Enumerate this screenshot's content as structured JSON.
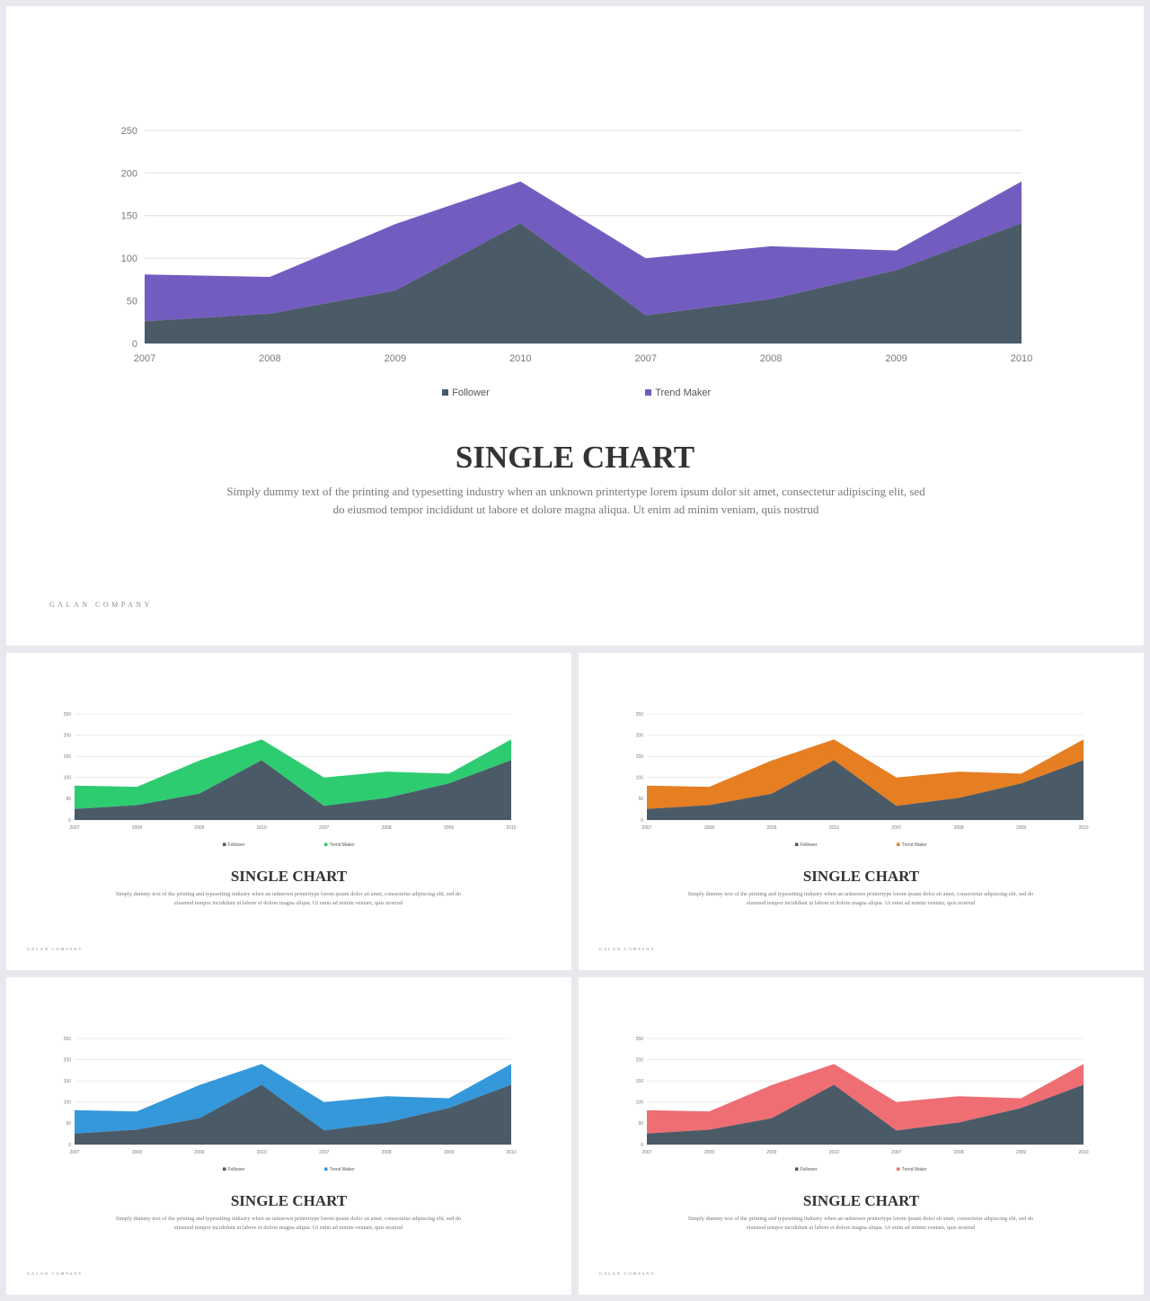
{
  "slide_common": {
    "title": "SINGLE CHART",
    "description": "Simply dummy text of the printing and typesetting industry when an unknown printertype lorem ipsum dolor sit amet, consectetur adipiscing elit, sed do eiusmod tempor incididunt ut labore et dolore magna aliqua. Ut enim ad minim veniam, quis nostrud",
    "brand": "GALAN COMPANY"
  },
  "colors": {
    "follower": "#4a5a67",
    "variants": [
      "#735cc0",
      "#2ecc71",
      "#e67e22",
      "#3498db",
      "#ee6e73"
    ]
  },
  "chart_data": {
    "type": "area",
    "stacked": true,
    "categories": [
      "2007",
      "2008",
      "2009",
      "2010",
      "2007",
      "2008",
      "2009",
      "2010"
    ],
    "series": [
      {
        "name": "Follower",
        "values": [
          26,
          35,
          62,
          141,
          33,
          52,
          86,
          141
        ]
      },
      {
        "name": "Trend Maker",
        "values": [
          55,
          43,
          78,
          49,
          67,
          62,
          23,
          49
        ]
      }
    ],
    "ylim": [
      0,
      250
    ],
    "yticks": [
      0,
      50,
      100,
      150,
      200,
      250
    ],
    "grid": true,
    "legend": "bottom"
  }
}
